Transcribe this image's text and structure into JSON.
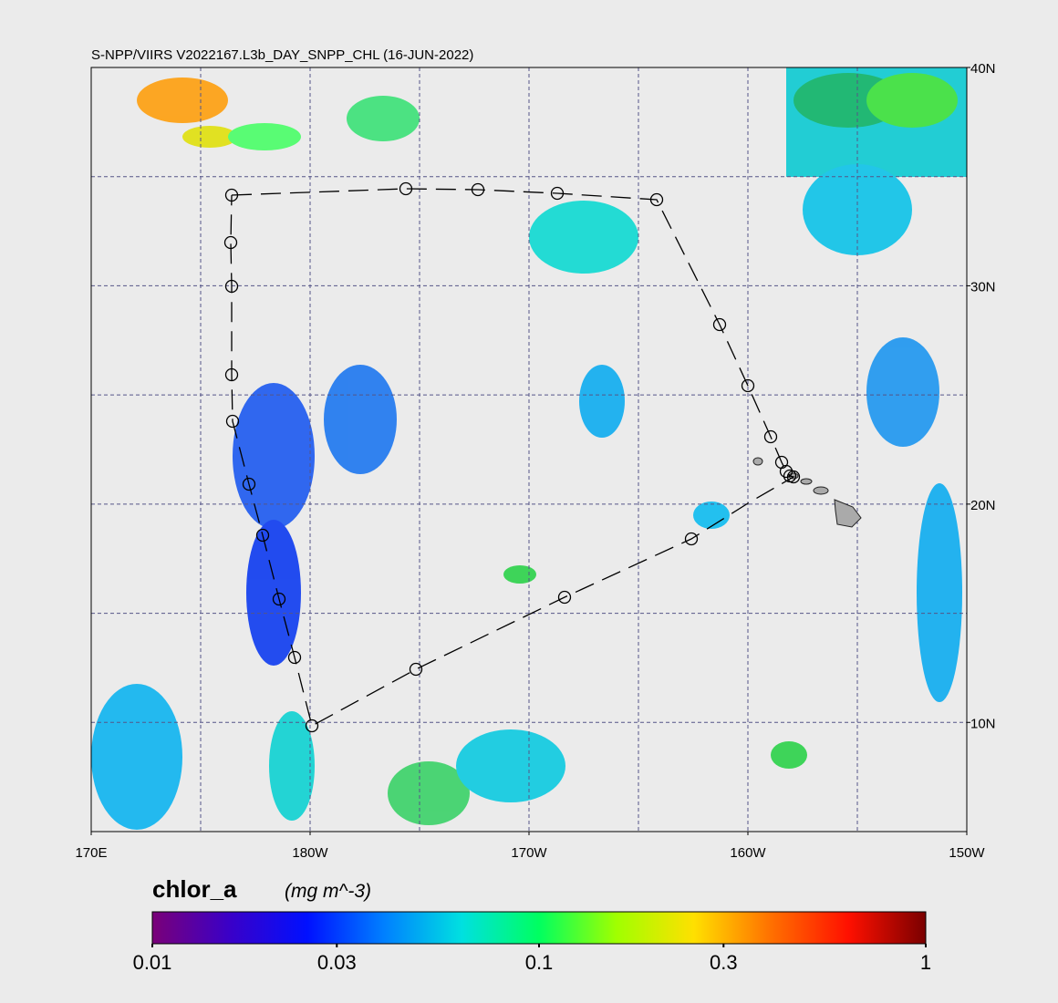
{
  "chart_data": {
    "type": "map",
    "title": "S-NPP/VIIRS V2022167.L3b_DAY_SNPP_CHL (16-JUN-2022)",
    "xlim": [
      170,
      210
    ],
    "ylim": [
      5,
      40
    ],
    "xticks": [
      {
        "value": 170,
        "label": "170E"
      },
      {
        "value": 180,
        "label": "180W"
      },
      {
        "value": 190,
        "label": "170W"
      },
      {
        "value": 200,
        "label": "160W"
      },
      {
        "value": 210,
        "label": "150W"
      }
    ],
    "yticks": [
      {
        "value": 10,
        "label": "10N"
      },
      {
        "value": 20,
        "label": "20N"
      },
      {
        "value": 30,
        "label": "30N"
      },
      {
        "value": 40,
        "label": "40N"
      }
    ],
    "xgrid": [
      175,
      180,
      185,
      190,
      195,
      200,
      205
    ],
    "ygrid": [
      10,
      15,
      20,
      25,
      30,
      35
    ],
    "grid": true,
    "colorbar": {
      "label": "chlor_a",
      "units": "(mg m^-3)",
      "log": true,
      "lim": [
        0.01,
        1
      ],
      "ticks": [
        0.01,
        0.03,
        0.1,
        0.3,
        1
      ],
      "colormap": [
        "#7a0078",
        "#3a00c8",
        "#0010ff",
        "#0080ff",
        "#00e0e0",
        "#00ff60",
        "#a0ff00",
        "#ffe000",
        "#ff7000",
        "#ff1000",
        "#7a0000"
      ]
    }
  }
}
